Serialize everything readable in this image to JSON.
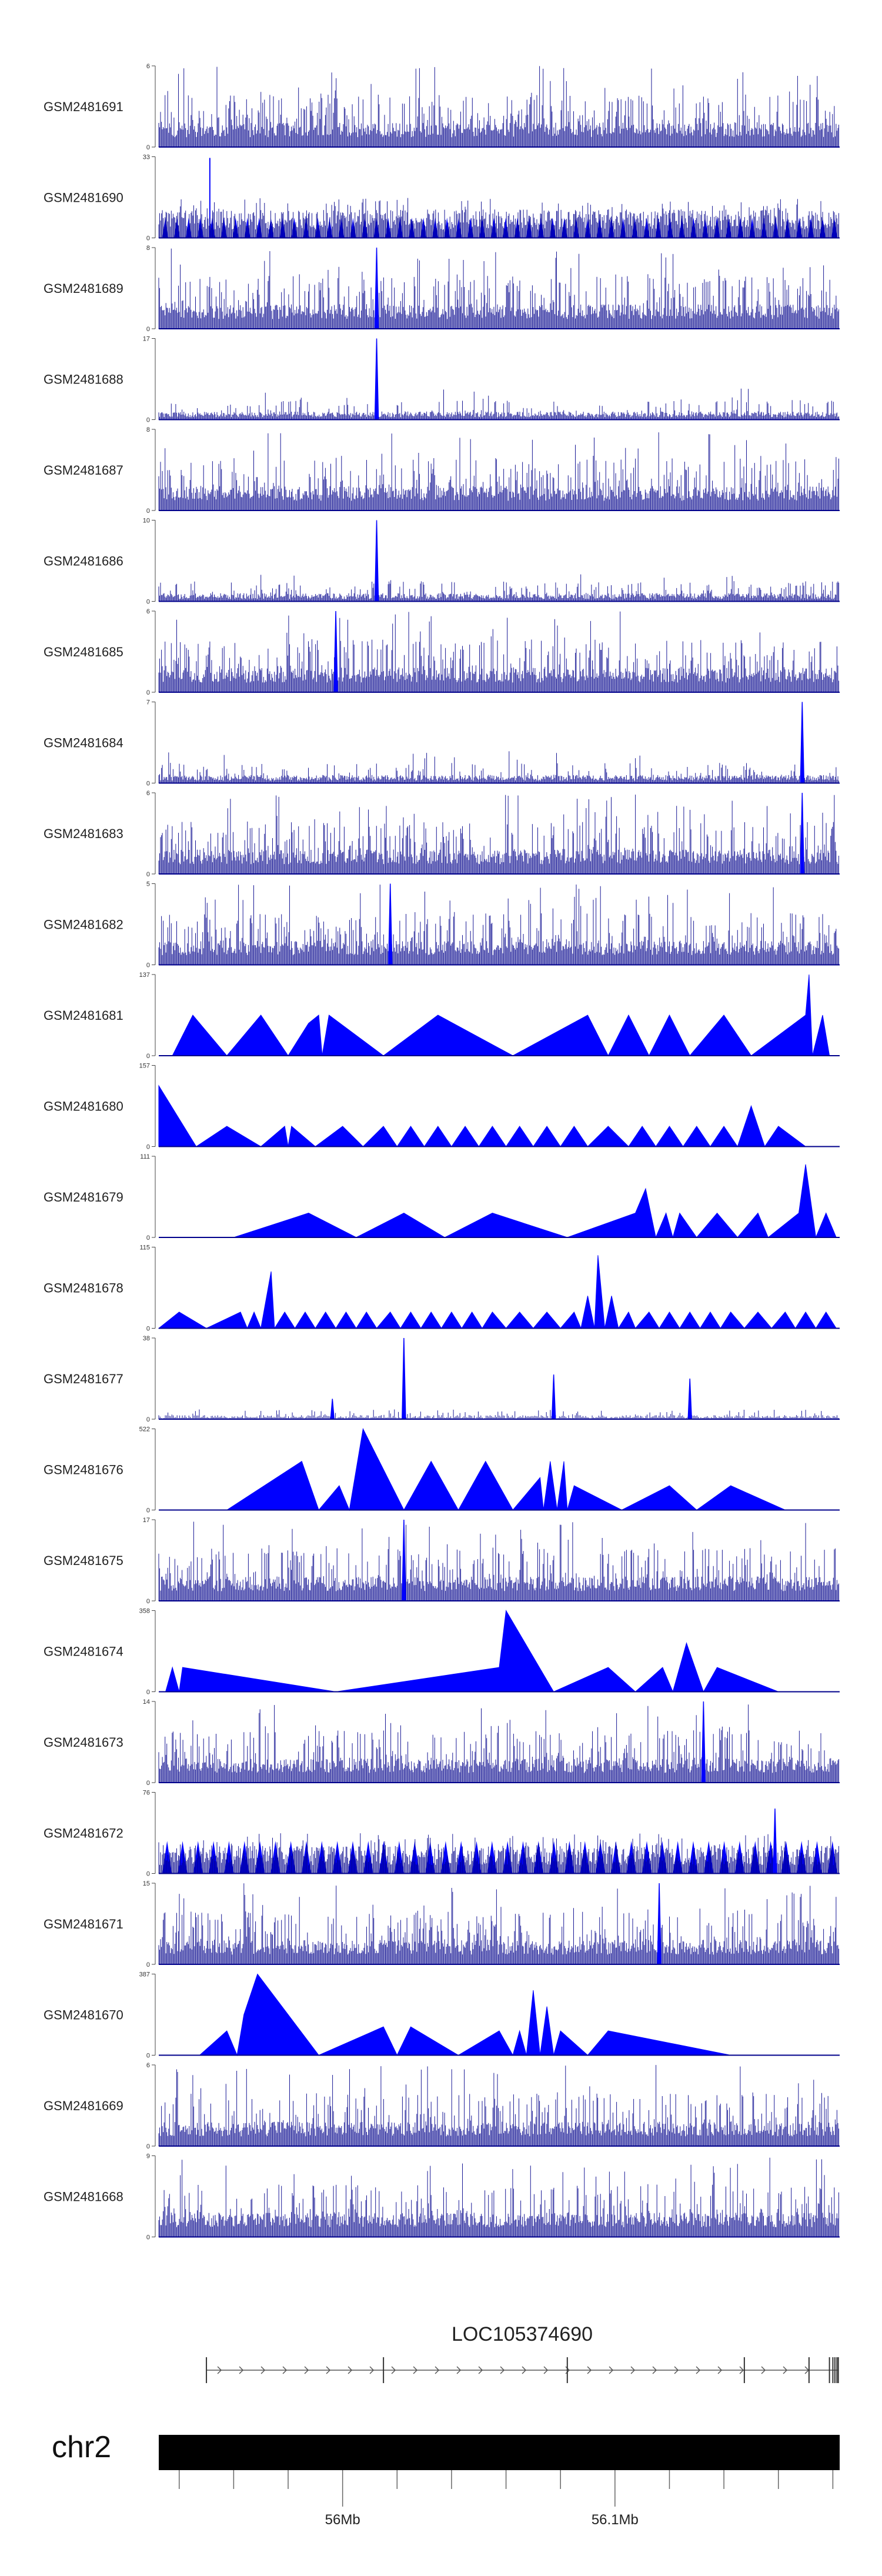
{
  "chart_data": {
    "type": "area",
    "tracks": [
      {
        "name": "GSM2481691",
        "ymax": "6",
        "ymin": "0",
        "style": "dense",
        "peaks": []
      },
      {
        "name": "GSM2481690",
        "ymax": "33",
        "ymin": "0",
        "style": "triangles",
        "peaks": []
      },
      {
        "name": "GSM2481689",
        "ymax": "8",
        "ymin": "0",
        "style": "dense",
        "peaks": [
          [
            0.32,
            1.0
          ]
        ]
      },
      {
        "name": "GSM2481688",
        "ymax": "17",
        "ymin": "0",
        "style": "sparse",
        "peaks": [
          [
            0.32,
            1.0
          ]
        ]
      },
      {
        "name": "GSM2481687",
        "ymax": "8",
        "ymin": "0",
        "style": "dense",
        "peaks": []
      },
      {
        "name": "GSM2481686",
        "ymax": "10",
        "ymin": "0",
        "style": "sparse",
        "peaks": [
          [
            0.32,
            1.0
          ]
        ]
      },
      {
        "name": "GSM2481685",
        "ymax": "6",
        "ymin": "0",
        "style": "dense",
        "peaks": [
          [
            0.26,
            1.0
          ]
        ]
      },
      {
        "name": "GSM2481684",
        "ymax": "7",
        "ymin": "0",
        "style": "sparse",
        "peaks": [
          [
            0.945,
            1.0
          ]
        ]
      },
      {
        "name": "GSM2481683",
        "ymax": "6",
        "ymin": "0",
        "style": "dense",
        "peaks": [
          [
            0.945,
            1.0
          ]
        ]
      },
      {
        "name": "GSM2481682",
        "ymax": "5",
        "ymin": "0",
        "style": "dense",
        "peaks": [
          [
            0.34,
            1.0
          ]
        ]
      },
      {
        "name": "GSM2481681",
        "ymax": "137",
        "ymin": "0",
        "style": "envelope",
        "env": [
          [
            0.02,
            0
          ],
          [
            0.05,
            0.5
          ],
          [
            0.1,
            0
          ],
          [
            0.15,
            0.5
          ],
          [
            0.19,
            0
          ],
          [
            0.22,
            0.4
          ],
          [
            0.235,
            0.5
          ],
          [
            0.24,
            0
          ],
          [
            0.25,
            0.5
          ],
          [
            0.33,
            0
          ],
          [
            0.41,
            0.5
          ],
          [
            0.52,
            0
          ],
          [
            0.63,
            0.5
          ],
          [
            0.66,
            0
          ],
          [
            0.69,
            0.5
          ],
          [
            0.72,
            0
          ],
          [
            0.75,
            0.5
          ],
          [
            0.78,
            0
          ],
          [
            0.83,
            0.5
          ],
          [
            0.87,
            0
          ],
          [
            0.95,
            0.5
          ],
          [
            0.955,
            1.0
          ],
          [
            0.96,
            0
          ],
          [
            0.975,
            0.5
          ],
          [
            0.985,
            0
          ]
        ],
        "peaks": []
      },
      {
        "name": "GSM2481680",
        "ymax": "157",
        "ymin": "0",
        "style": "envelope",
        "env": [
          [
            0.0,
            0.75
          ],
          [
            0.055,
            0
          ],
          [
            0.1,
            0.25
          ],
          [
            0.15,
            0
          ],
          [
            0.185,
            0.25
          ],
          [
            0.19,
            0
          ],
          [
            0.195,
            0.25
          ],
          [
            0.23,
            0
          ],
          [
            0.27,
            0.25
          ],
          [
            0.3,
            0
          ],
          [
            0.33,
            0.25
          ],
          [
            0.35,
            0
          ],
          [
            0.37,
            0.25
          ],
          [
            0.39,
            0
          ],
          [
            0.41,
            0.25
          ],
          [
            0.43,
            0
          ],
          [
            0.45,
            0.25
          ],
          [
            0.47,
            0
          ],
          [
            0.49,
            0.25
          ],
          [
            0.51,
            0
          ],
          [
            0.53,
            0.25
          ],
          [
            0.55,
            0
          ],
          [
            0.57,
            0.25
          ],
          [
            0.59,
            0
          ],
          [
            0.61,
            0.25
          ],
          [
            0.63,
            0
          ],
          [
            0.66,
            0.25
          ],
          [
            0.69,
            0
          ],
          [
            0.71,
            0.25
          ],
          [
            0.73,
            0
          ],
          [
            0.75,
            0.25
          ],
          [
            0.77,
            0
          ],
          [
            0.79,
            0.25
          ],
          [
            0.81,
            0
          ],
          [
            0.83,
            0.25
          ],
          [
            0.85,
            0
          ],
          [
            0.87,
            0.5
          ],
          [
            0.89,
            0
          ],
          [
            0.91,
            0.25
          ],
          [
            0.95,
            0
          ]
        ],
        "peaks": []
      },
      {
        "name": "GSM2481679",
        "ymax": "111",
        "ymin": "0",
        "style": "envelope",
        "env": [
          [
            0.11,
            0
          ],
          [
            0.22,
            0.3
          ],
          [
            0.29,
            0
          ],
          [
            0.36,
            0.3
          ],
          [
            0.42,
            0
          ],
          [
            0.49,
            0.3
          ],
          [
            0.6,
            0
          ],
          [
            0.7,
            0.3
          ],
          [
            0.715,
            0.6
          ],
          [
            0.73,
            0
          ],
          [
            0.745,
            0.3
          ],
          [
            0.755,
            0
          ],
          [
            0.765,
            0.3
          ],
          [
            0.79,
            0
          ],
          [
            0.82,
            0.3
          ],
          [
            0.85,
            0
          ],
          [
            0.88,
            0.3
          ],
          [
            0.895,
            0
          ],
          [
            0.94,
            0.3
          ],
          [
            0.95,
            0.9
          ],
          [
            0.965,
            0
          ],
          [
            0.98,
            0.3
          ],
          [
            0.995,
            0
          ]
        ],
        "peaks": []
      },
      {
        "name": "GSM2481678",
        "ymax": "115",
        "ymin": "0",
        "style": "envelope",
        "env": [
          [
            0.0,
            0
          ],
          [
            0.03,
            0.2
          ],
          [
            0.07,
            0
          ],
          [
            0.12,
            0.2
          ],
          [
            0.13,
            0
          ],
          [
            0.14,
            0.2
          ],
          [
            0.15,
            0
          ],
          [
            0.165,
            0.7
          ],
          [
            0.17,
            0
          ],
          [
            0.185,
            0.2
          ],
          [
            0.2,
            0
          ],
          [
            0.215,
            0.2
          ],
          [
            0.23,
            0
          ],
          [
            0.245,
            0.2
          ],
          [
            0.26,
            0
          ],
          [
            0.275,
            0.2
          ],
          [
            0.29,
            0
          ],
          [
            0.305,
            0.2
          ],
          [
            0.32,
            0
          ],
          [
            0.34,
            0.2
          ],
          [
            0.355,
            0
          ],
          [
            0.37,
            0.2
          ],
          [
            0.385,
            0
          ],
          [
            0.4,
            0.2
          ],
          [
            0.415,
            0
          ],
          [
            0.43,
            0.2
          ],
          [
            0.445,
            0
          ],
          [
            0.46,
            0.2
          ],
          [
            0.475,
            0
          ],
          [
            0.49,
            0.2
          ],
          [
            0.51,
            0
          ],
          [
            0.53,
            0.2
          ],
          [
            0.55,
            0
          ],
          [
            0.57,
            0.2
          ],
          [
            0.59,
            0
          ],
          [
            0.61,
            0.2
          ],
          [
            0.62,
            0
          ],
          [
            0.63,
            0.4
          ],
          [
            0.64,
            0
          ],
          [
            0.645,
            0.9
          ],
          [
            0.655,
            0
          ],
          [
            0.665,
            0.4
          ],
          [
            0.675,
            0
          ],
          [
            0.69,
            0.2
          ],
          [
            0.7,
            0
          ],
          [
            0.72,
            0.2
          ],
          [
            0.735,
            0
          ],
          [
            0.75,
            0.2
          ],
          [
            0.765,
            0
          ],
          [
            0.78,
            0.2
          ],
          [
            0.795,
            0
          ],
          [
            0.81,
            0.2
          ],
          [
            0.825,
            0
          ],
          [
            0.84,
            0.2
          ],
          [
            0.86,
            0
          ],
          [
            0.88,
            0.2
          ],
          [
            0.9,
            0
          ],
          [
            0.92,
            0.2
          ],
          [
            0.935,
            0
          ],
          [
            0.95,
            0.2
          ],
          [
            0.965,
            0
          ],
          [
            0.98,
            0.2
          ],
          [
            0.995,
            0
          ]
        ],
        "peaks": []
      },
      {
        "name": "GSM2481677",
        "ymax": "38",
        "ymin": "0",
        "style": "flat",
        "peaks": [
          [
            0.255,
            0.25
          ],
          [
            0.36,
            1.0
          ],
          [
            0.58,
            0.55
          ],
          [
            0.78,
            0.5
          ]
        ]
      },
      {
        "name": "GSM2481676",
        "ymax": "522",
        "ymin": "0",
        "style": "envelope",
        "env": [
          [
            0.1,
            0
          ],
          [
            0.21,
            0.6
          ],
          [
            0.235,
            0
          ],
          [
            0.265,
            0.3
          ],
          [
            0.28,
            0
          ],
          [
            0.3,
            1.0
          ],
          [
            0.36,
            0
          ],
          [
            0.4,
            0.6
          ],
          [
            0.44,
            0
          ],
          [
            0.48,
            0.6
          ],
          [
            0.52,
            0
          ],
          [
            0.56,
            0.4
          ],
          [
            0.565,
            0
          ],
          [
            0.575,
            0.6
          ],
          [
            0.585,
            0
          ],
          [
            0.595,
            0.6
          ],
          [
            0.6,
            0
          ],
          [
            0.61,
            0.3
          ],
          [
            0.68,
            0
          ],
          [
            0.75,
            0.3
          ],
          [
            0.79,
            0
          ],
          [
            0.84,
            0.3
          ],
          [
            0.92,
            0
          ]
        ],
        "peaks": []
      },
      {
        "name": "GSM2481675",
        "ymax": "17",
        "ymin": "0",
        "style": "dense",
        "peaks": [
          [
            0.36,
            1.0
          ]
        ]
      },
      {
        "name": "GSM2481674",
        "ymax": "358",
        "ymin": "0",
        "style": "envelope",
        "env": [
          [
            0.01,
            0
          ],
          [
            0.02,
            0.3
          ],
          [
            0.03,
            0
          ],
          [
            0.035,
            0.3
          ],
          [
            0.26,
            0
          ],
          [
            0.5,
            0.3
          ],
          [
            0.51,
            1.0
          ],
          [
            0.58,
            0
          ],
          [
            0.66,
            0.3
          ],
          [
            0.7,
            0
          ],
          [
            0.74,
            0.3
          ],
          [
            0.755,
            0
          ],
          [
            0.775,
            0.6
          ],
          [
            0.8,
            0
          ],
          [
            0.82,
            0.3
          ],
          [
            0.91,
            0
          ]
        ],
        "peaks": []
      },
      {
        "name": "GSM2481673",
        "ymax": "14",
        "ymin": "0",
        "style": "dense",
        "peaks": [
          [
            0.8,
            1.0
          ]
        ]
      },
      {
        "name": "GSM2481672",
        "ymax": "76",
        "ymin": "0",
        "style": "triangles2",
        "peaks": [
          [
            0.905,
            0.8
          ]
        ]
      },
      {
        "name": "GSM2481671",
        "ymax": "15",
        "ymin": "0",
        "style": "dense",
        "peaks": [
          [
            0.735,
            1.0
          ]
        ]
      },
      {
        "name": "GSM2481670",
        "ymax": "387",
        "ymin": "0",
        "style": "envelope",
        "env": [
          [
            0.06,
            0
          ],
          [
            0.1,
            0.3
          ],
          [
            0.115,
            0
          ],
          [
            0.125,
            0.5
          ],
          [
            0.145,
            1.0
          ],
          [
            0.235,
            0
          ],
          [
            0.33,
            0.35
          ],
          [
            0.35,
            0
          ],
          [
            0.37,
            0.35
          ],
          [
            0.44,
            0
          ],
          [
            0.5,
            0.3
          ],
          [
            0.52,
            0
          ],
          [
            0.53,
            0.3
          ],
          [
            0.54,
            0
          ],
          [
            0.55,
            0.8
          ],
          [
            0.56,
            0
          ],
          [
            0.57,
            0.6
          ],
          [
            0.58,
            0
          ],
          [
            0.59,
            0.3
          ],
          [
            0.63,
            0
          ],
          [
            0.66,
            0.3
          ],
          [
            0.84,
            0
          ]
        ],
        "peaks": []
      },
      {
        "name": "GSM2481669",
        "ymax": "6",
        "ymin": "0",
        "style": "dense",
        "peaks": []
      },
      {
        "name": "GSM2481668",
        "ymax": "9",
        "ymin": "0",
        "style": "dense",
        "peaks": []
      }
    ],
    "gene": {
      "name": "LOC105374690",
      "start_frac": 0.07,
      "end_frac": 0.998,
      "exons": [
        0.07,
        0.33,
        0.6,
        0.86,
        0.955,
        0.985,
        0.99,
        0.993,
        0.996,
        0.998
      ]
    },
    "chromosome": {
      "name": "chr2",
      "ticks": [
        {
          "frac": 0.03,
          "label": ""
        },
        {
          "frac": 0.11,
          "label": ""
        },
        {
          "frac": 0.19,
          "label": ""
        },
        {
          "frac": 0.27,
          "label": "56Mb"
        },
        {
          "frac": 0.35,
          "label": ""
        },
        {
          "frac": 0.43,
          "label": ""
        },
        {
          "frac": 0.51,
          "label": ""
        },
        {
          "frac": 0.59,
          "label": ""
        },
        {
          "frac": 0.67,
          "label": "56.1Mb"
        },
        {
          "frac": 0.75,
          "label": ""
        },
        {
          "frac": 0.83,
          "label": ""
        },
        {
          "frac": 0.91,
          "label": ""
        },
        {
          "frac": 0.99,
          "label": ""
        }
      ]
    },
    "colors": {
      "signal": "#0000ff",
      "signal_dark": "#00008b",
      "axis": "#444444",
      "chrom_bar": "#000000"
    }
  }
}
